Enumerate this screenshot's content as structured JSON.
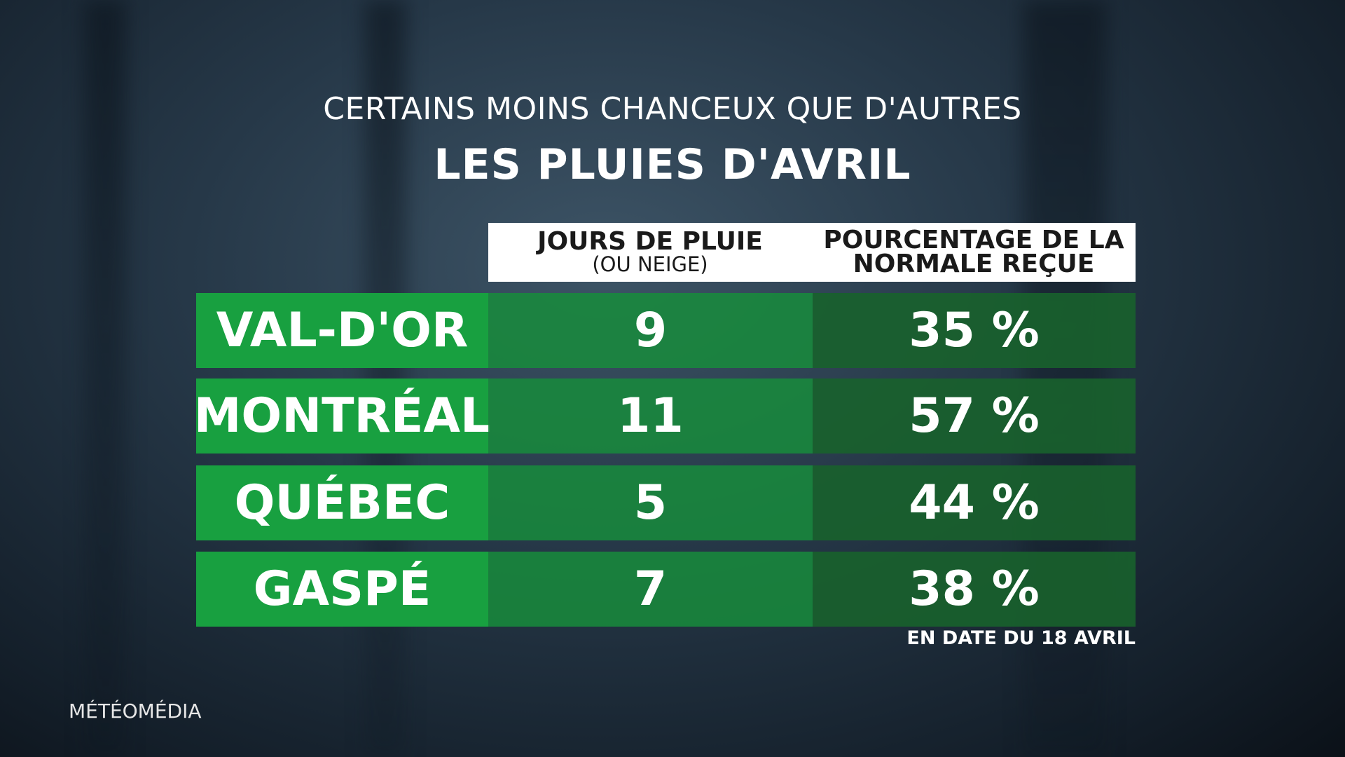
{
  "header": {
    "subtitle": "CERTAINS MOINS CHANCEUX QUE D'AUTRES",
    "title": "LES PLUIES D'AVRIL"
  },
  "table": {
    "columns": [
      {
        "line1": "JOURS DE PLUIE",
        "line2": "(OU NEIGE)"
      },
      {
        "line1": "POURCENTAGE DE LA",
        "line2": "NORMALE REÇUE"
      }
    ],
    "rows": [
      [
        "VAL-D'OR",
        9,
        "35 %"
      ],
      [
        "MONTRÉAL",
        11,
        "57 %"
      ],
      [
        "QUÉBEC",
        5,
        "44 %"
      ],
      [
        "GASPÉ",
        7,
        "38 %"
      ]
    ]
  },
  "footnote": "EN DATE DU 18 AVRIL",
  "logo": "MÉTÉOMÉDIA"
}
